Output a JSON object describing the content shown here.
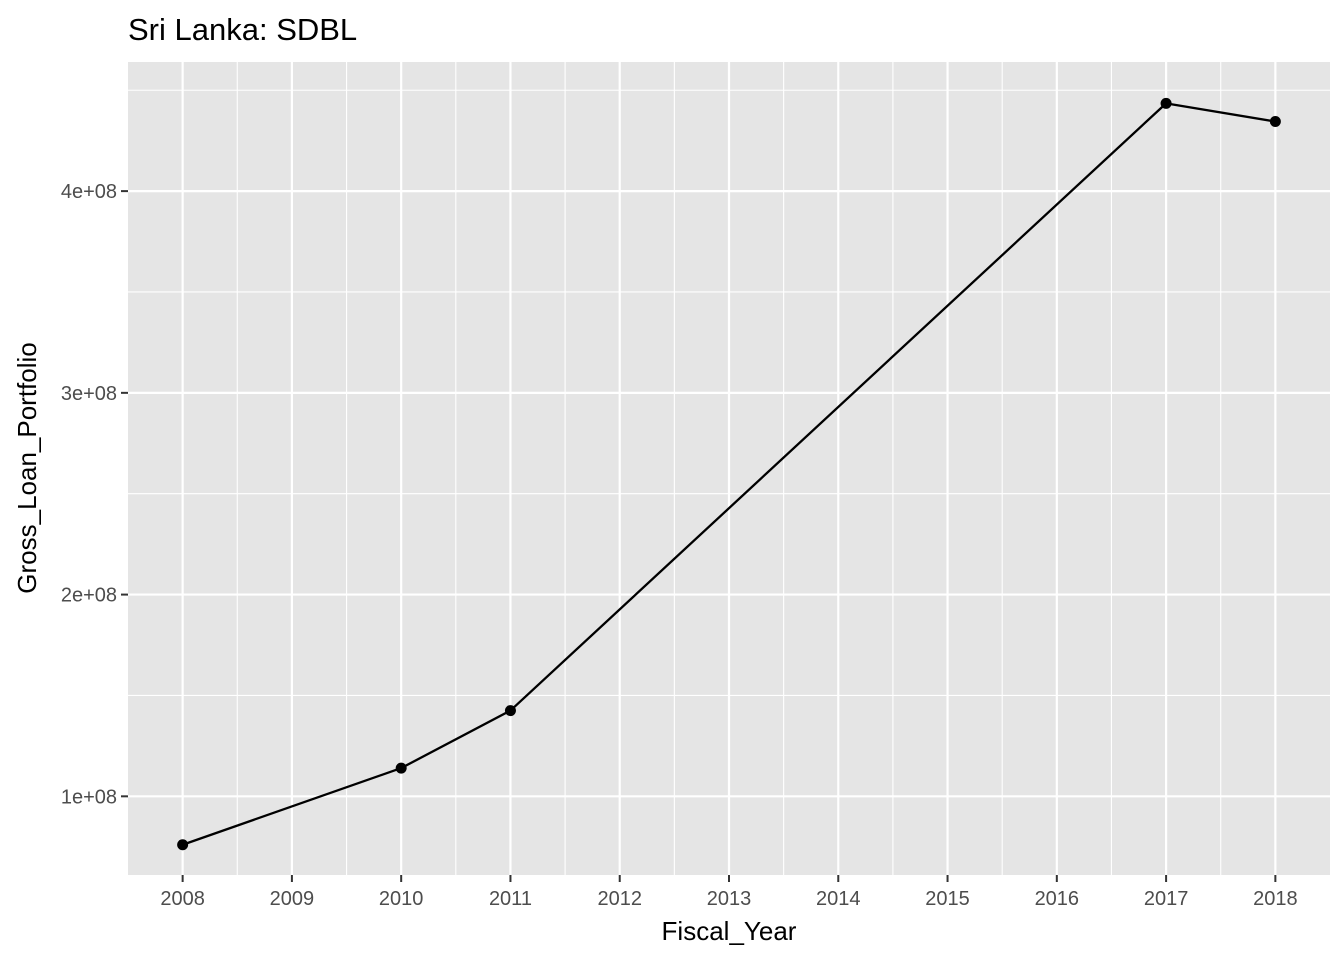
{
  "chart_data": {
    "type": "line",
    "title": "Sri Lanka:  SDBL",
    "xlabel": "Fiscal_Year",
    "ylabel": "Gross_Loan_Portfolio",
    "x_ticks": [
      "2008",
      "2009",
      "2010",
      "2011",
      "2012",
      "2013",
      "2014",
      "2015",
      "2016",
      "2017",
      "2018"
    ],
    "y_ticks": [
      {
        "value": 100000000,
        "label": "1e+08"
      },
      {
        "value": 200000000,
        "label": "2e+08"
      },
      {
        "value": 300000000,
        "label": "3e+08"
      },
      {
        "value": 400000000,
        "label": "4e+08"
      }
    ],
    "xlim": [
      2007.5,
      2018.5
    ],
    "ylim": [
      61000000,
      464000000
    ],
    "series": [
      {
        "x": [
          2008,
          2010,
          2011,
          2017,
          2018
        ],
        "y": [
          76000000,
          114000000,
          142500000,
          443500000,
          434500000
        ]
      }
    ],
    "grid": true,
    "colors": {
      "panel_background": "#e5e5e5",
      "grid_line": "#ffffff",
      "series_line": "#000000",
      "tick_label": "#4d4d4d",
      "tick_mark": "#333333"
    }
  }
}
